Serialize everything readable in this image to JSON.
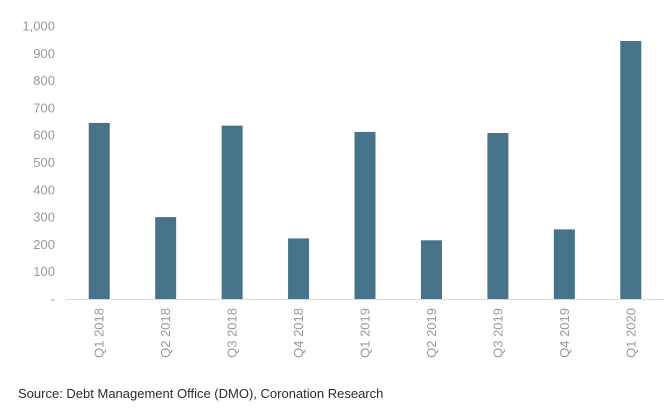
{
  "chart_data": {
    "type": "bar",
    "categories": [
      "Q1 2018",
      "Q2 2018",
      "Q3 2018",
      "Q4 2018",
      "Q1 2019",
      "Q2 2019",
      "Q3 2019",
      "Q4 2019",
      "Q1 2020"
    ],
    "values": [
      645,
      300,
      635,
      222,
      612,
      215,
      608,
      255,
      945
    ],
    "title": "",
    "xlabel": "",
    "ylabel": "",
    "ylim": [
      0,
      1000
    ],
    "yticks": [
      0,
      100,
      200,
      300,
      400,
      500,
      600,
      700,
      800,
      900,
      1000
    ],
    "ytick_labels": [
      "-",
      "100",
      "200",
      "300",
      "400",
      "500",
      "600",
      "700",
      "800",
      "900",
      "1,000"
    ],
    "grid": false,
    "legend": "none",
    "bar_color": "#46738a",
    "axis_color": "#d9d9d9",
    "tick_label_color": "#9a9a9a"
  },
  "source": "Source: Debt Management Office (DMO), Coronation Research"
}
